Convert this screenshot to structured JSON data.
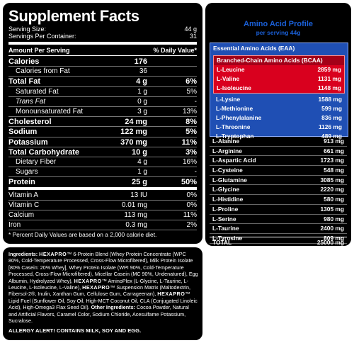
{
  "supplement_facts": {
    "title": "Supplement Facts",
    "serving_size_label": "Serving Size:",
    "serving_size_value": "44 g",
    "servings_label": "Servings Per Container:",
    "servings_value": "31",
    "amount_header": "Amount Per Serving",
    "dv_header": "% Daily Value*",
    "rows": [
      {
        "label": "Calories",
        "amount": "176",
        "dv": ""
      },
      {
        "label": "Calories from Fat",
        "amount": "36",
        "dv": ""
      },
      {
        "label": "Total Fat",
        "amount": "4 g",
        "dv": "6%"
      },
      {
        "label": "Saturated Fat",
        "amount": "1 g",
        "dv": "5%"
      },
      {
        "label": "Trans Fat",
        "amount": "0 g",
        "dv": "-"
      },
      {
        "label": "Monounsaturated Fat",
        "amount": "3 g",
        "dv": "13%"
      },
      {
        "label": "Cholesterol",
        "amount": "24 mg",
        "dv": "8%"
      },
      {
        "label": "Sodium",
        "amount": "122 mg",
        "dv": "5%"
      },
      {
        "label": "Potassium",
        "amount": "370 mg",
        "dv": "11%"
      },
      {
        "label": "Total Carbohydrate",
        "amount": "10 g",
        "dv": "3%"
      },
      {
        "label": "Dietary Fiber",
        "amount": "4 g",
        "dv": "16%"
      },
      {
        "label": "Sugars",
        "amount": "1 g",
        "dv": "-"
      },
      {
        "label": "Protein",
        "amount": "25 g",
        "dv": "50%"
      },
      {
        "label": "Vitamin A",
        "amount": "13 IU",
        "dv": "0%"
      },
      {
        "label": "Vitamin C",
        "amount": "0.01 mg",
        "dv": "0%"
      },
      {
        "label": "Calcium",
        "amount": "113 mg",
        "dv": "11%"
      },
      {
        "label": "Iron",
        "amount": "0.3 mg",
        "dv": "2%"
      }
    ],
    "footnote": "* Percent Daily Values are based on a 2,000 calorie diet."
  },
  "ingredients": {
    "label": "Ingredients:",
    "brand": "HEXAPRO",
    "tm": "™",
    "t1": " 6-Protein Blend (Whey Protein Concentrate (WPC 80%, Cold-Temperature Processed, Cross-Flow Microfiltered), Milk Protein Isolate [80% Casein: 20% Whey], Whey Protein Isolate (WPI 90%, Cold-Temperature Processed, Cross-Flow Microfiltered), Micellar Casein (MC 90%, Undenatured), Egg Albumin, Hydrolyzed Whey), ",
    "t2": " AminoPlex (L-Glycine, L-Taurine, L-Leucine, L-Isoleucine, L-Valine), ",
    "t3": " Suspension Matrix (Maltodextrin, Fibersol-2®, Inulin, Xanthan Gum, Cellulose Gum, Carrageenan), ",
    "t4": " Lipid Fuel (Sunflower Oil, Soy Oil, High-MCT Coconut Oil, CLA (Conjugated Linoleic Acid), High-Omega3 Flax Seed Oil).",
    "other_label": "Other Ingredients:",
    "other_text": " Cocoa Powder, Natural and Artificial Flavors, Caramel Color, Sodium Chloride, Acesulfame Potassium, Sucralose.",
    "allergy": "ALLERGY ALERT! CONTAINS MILK, SOY AND EGG."
  },
  "amino_profile": {
    "title": "Amino Acid Profile",
    "subtitle": "per serving 44g",
    "eaa_header": "Essential Amino Acids (EAA)",
    "bcaa_header": "Branched-Chain Amino Acids (BCAA)",
    "bcaa": [
      {
        "name": "L-Leucine",
        "value": "2859 mg"
      },
      {
        "name": "L-Valine",
        "value": "1131 mg"
      },
      {
        "name": "L-Isoleucine",
        "value": "1148 mg"
      }
    ],
    "eaa": [
      {
        "name": "L-Lysine",
        "value": "1588 mg"
      },
      {
        "name": "L-Methionine",
        "value": "599 mg"
      },
      {
        "name": "L-Phenylalanine",
        "value": "836 mg"
      },
      {
        "name": "L-Threonine",
        "value": "1126 mg"
      },
      {
        "name": "L-Tryptophan",
        "value": "489 mg"
      }
    ],
    "other": [
      {
        "name": "L-Alanine",
        "value": "913 mg"
      },
      {
        "name": "L-Arginine",
        "value": "661 mg"
      },
      {
        "name": "L-Aspartic Acid",
        "value": "1723 mg"
      },
      {
        "name": "L-Cysteine",
        "value": "548 mg"
      },
      {
        "name": "L-Glutamine",
        "value": "3085 mg"
      },
      {
        "name": "L-Glycine",
        "value": "2220 mg"
      },
      {
        "name": "L-Histidine",
        "value": "580 mg"
      },
      {
        "name": "L-Proline",
        "value": "1305 mg"
      },
      {
        "name": "L-Serine",
        "value": "980 mg"
      },
      {
        "name": "L-Taurine",
        "value": "2400 mg"
      },
      {
        "name": "L-Tyrosine",
        "value": "809 mg"
      }
    ],
    "total_label": "TOTAL",
    "total_value": "25000 mg"
  },
  "colors": {
    "panel": "#000000",
    "title_blue": "#1a5fd6",
    "eaa_blue": "#1f4fb4",
    "bcaa_red": "#d9001e"
  }
}
